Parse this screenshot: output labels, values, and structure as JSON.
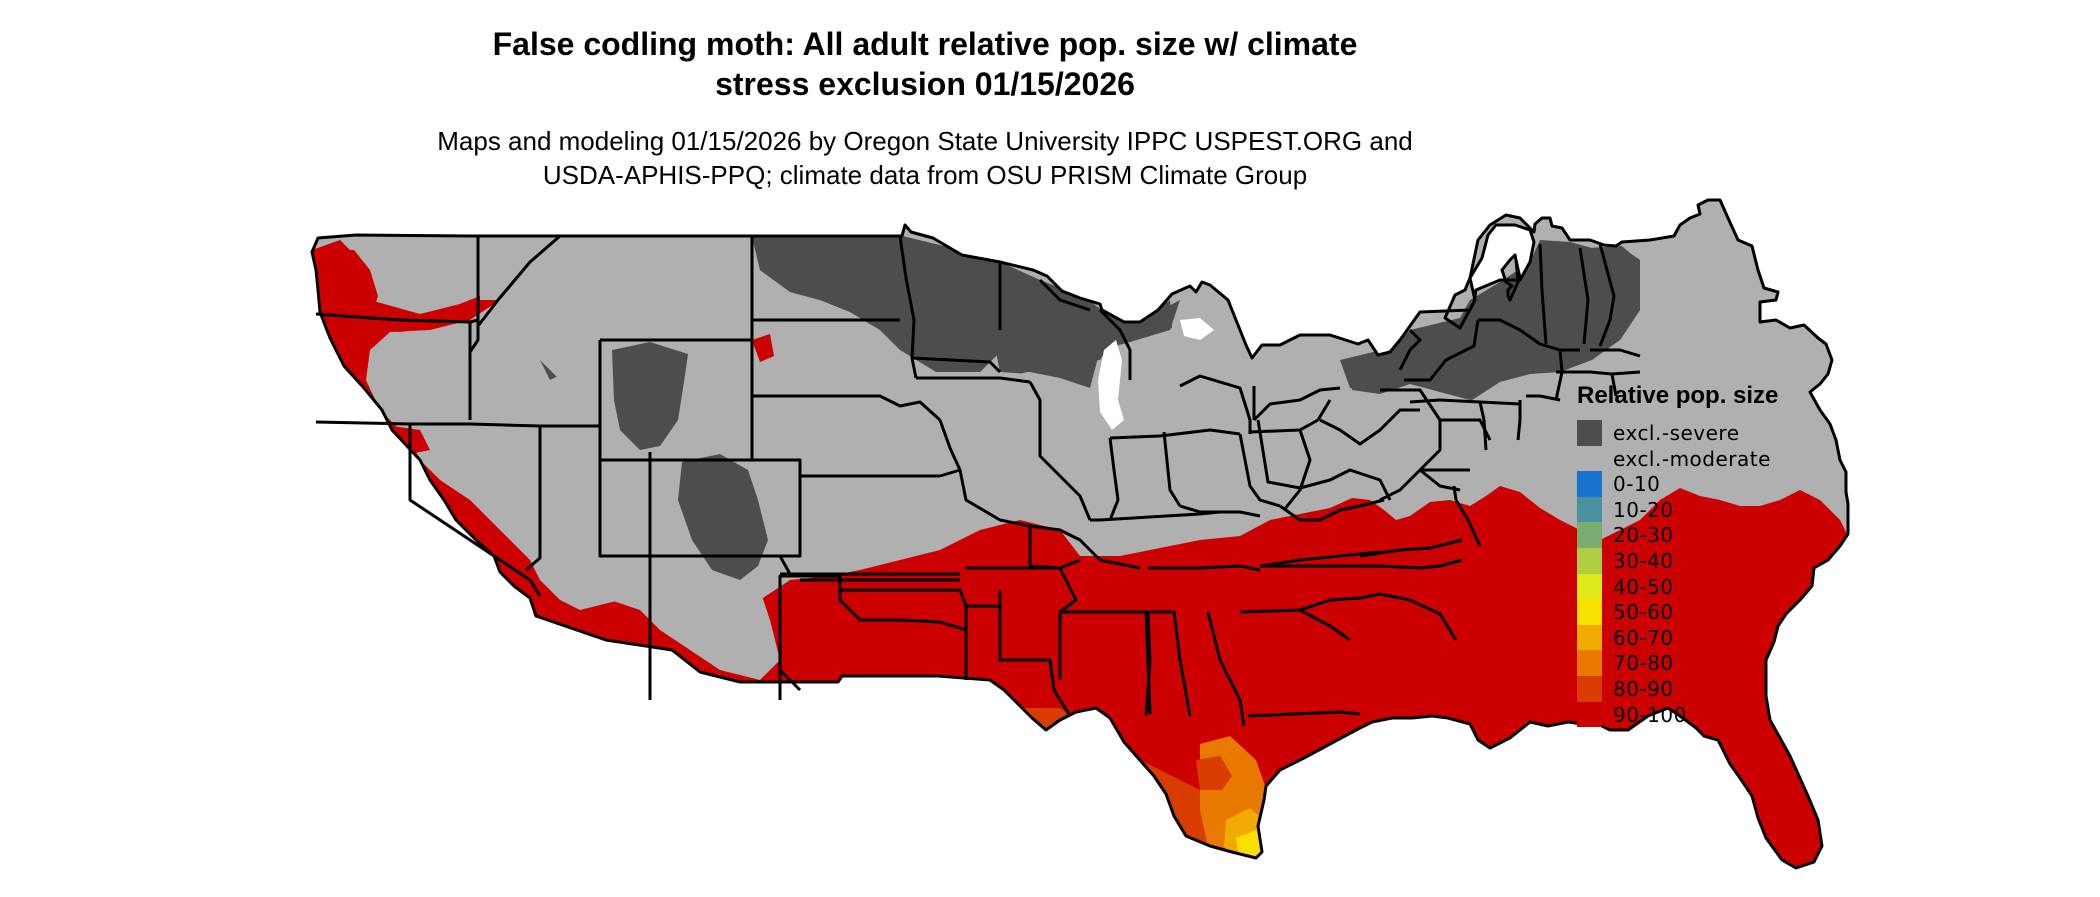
{
  "title": {
    "line1": "False codling moth: All adult relative pop. size w/ climate",
    "line2": "stress exclusion 01/15/2026"
  },
  "subtitle": {
    "line1": "Maps and modeling 01/15/2026 by Oregon State University IPPC USPEST.ORG and",
    "line2": "USDA-APHIS-PPQ; climate data from OSU PRISM Climate Group"
  },
  "legend": {
    "title": "Relative pop. size",
    "items": [
      {
        "label": "excl.-severe",
        "color": "#4d4d4d"
      },
      {
        "label": "excl.-moderate",
        "color": "#b0b0b0"
      },
      {
        "label": "0-10",
        "color": "#1a73d0"
      },
      {
        "label": "10-20",
        "color": "#4a90a0"
      },
      {
        "label": "20-30",
        "color": "#7aab70"
      },
      {
        "label": "30-40",
        "color": "#b0cc40"
      },
      {
        "label": "40-50",
        "color": "#e0e81a"
      },
      {
        "label": "50-60",
        "color": "#f7e000"
      },
      {
        "label": "60-70",
        "color": "#f0aa00"
      },
      {
        "label": "70-80",
        "color": "#e87800"
      },
      {
        "label": "80-90",
        "color": "#d83c00"
      },
      {
        "label": "90-100",
        "color": "#cc0000"
      }
    ]
  },
  "map": {
    "colors": {
      "severe": "#4d4d4d",
      "moderate": "#b0b0b0",
      "high": "#cc0000",
      "band80": "#d83c00",
      "band70": "#e87800",
      "band60": "#f0aa00",
      "band50": "#f7e000",
      "border": "#000000"
    }
  }
}
